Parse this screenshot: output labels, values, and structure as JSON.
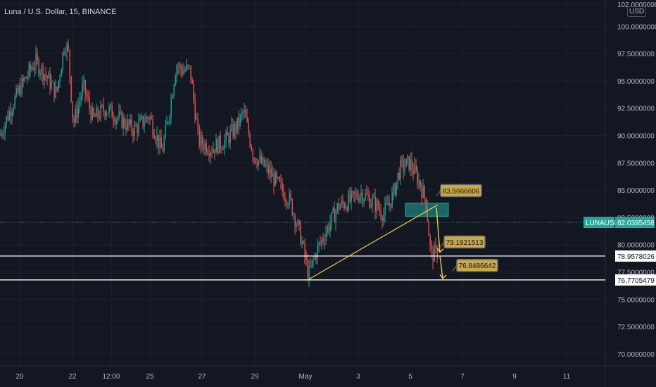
{
  "header": {
    "symbol_title": "Luna / U.S. Dollar, 15, BINANCE",
    "currency": "USD"
  },
  "colors": {
    "background": "#131722",
    "grid": "#1e222d",
    "up_candle": "#26a69a",
    "down_candle": "#ef5350",
    "trendline": "#f2c94c",
    "label_bg": "#c9a84c",
    "current_price_tag": "#26a69a"
  },
  "chart_data": {
    "type": "candlestick",
    "ylim": [
      68.9,
      102.4
    ],
    "y_ticks": [
      "102.0000000",
      "100.0000000",
      "97.5000000",
      "95.0000000",
      "92.5000000",
      "90.0000000",
      "87.5000000",
      "85.0000000",
      "82.5000000",
      "80.0000000",
      "77.5000000",
      "75.0000000",
      "72.5000000",
      "70.0000000"
    ],
    "x_ticks": [
      "20",
      "22",
      "12:00",
      "25",
      "27",
      "29",
      "May",
      "3",
      "5",
      "7",
      "9",
      "11"
    ],
    "price_path": [
      [
        0,
        90.0
      ],
      [
        15,
        92.5
      ],
      [
        30,
        94.5
      ],
      [
        50,
        96.8
      ],
      [
        65,
        95.5
      ],
      [
        80,
        93.8
      ],
      [
        92,
        98.6
      ],
      [
        97,
        97.5
      ],
      [
        104,
        91.0
      ],
      [
        118,
        94.5
      ],
      [
        132,
        91.5
      ],
      [
        150,
        92.5
      ],
      [
        170,
        91.5
      ],
      [
        190,
        90.5
      ],
      [
        212,
        91.8
      ],
      [
        230,
        88.5
      ],
      [
        240,
        92.0
      ],
      [
        250,
        96.5
      ],
      [
        258,
        96.0
      ],
      [
        270,
        96.0
      ],
      [
        282,
        89.5
      ],
      [
        300,
        88.8
      ],
      [
        320,
        89.5
      ],
      [
        338,
        91.0
      ],
      [
        346,
        92.2
      ],
      [
        360,
        88.2
      ],
      [
        378,
        87.0
      ],
      [
        395,
        85.5
      ],
      [
        412,
        84.0
      ],
      [
        428,
        80.5
      ],
      [
        438,
        77.2
      ],
      [
        450,
        79.5
      ],
      [
        465,
        81.5
      ],
      [
        480,
        83.5
      ],
      [
        497,
        84.0
      ],
      [
        512,
        84.8
      ],
      [
        528,
        84.0
      ],
      [
        545,
        82.8
      ],
      [
        558,
        84.5
      ],
      [
        568,
        87.0
      ],
      [
        582,
        87.5
      ],
      [
        595,
        85.8
      ],
      [
        605,
        84.0
      ],
      [
        612,
        79.0
      ],
      [
        622,
        79.3
      ]
    ],
    "current_price": {
      "symbol": "LUNAUSD",
      "value": "82.0395458",
      "y": 82.0395458
    },
    "horizontal_levels": [
      {
        "label": "78.9578026",
        "y": 78.9578026
      },
      {
        "label": "76.7705479",
        "y": 76.7705479
      }
    ],
    "annotations": [
      {
        "text": "83.5666606",
        "anchor_x": 620,
        "y": 84.95
      },
      {
        "text": "79.1921513",
        "anchor_x": 625,
        "y": 80.25
      },
      {
        "text": "76.8486642",
        "anchor_x": 643,
        "y": 78.1
      }
    ],
    "trendline": {
      "x0": 437,
      "y0": 76.77,
      "x1": 622,
      "y1": 83.65
    },
    "zone": {
      "x0": 576,
      "x1": 637,
      "y_top": 83.8,
      "y_bottom": 82.6
    },
    "arrows": [
      {
        "x0": 620,
        "y0": 83.4,
        "x1": 625,
        "y1": 79.3
      },
      {
        "x0": 625,
        "y0": 79.0,
        "x1": 629,
        "y1": 76.9
      }
    ]
  }
}
